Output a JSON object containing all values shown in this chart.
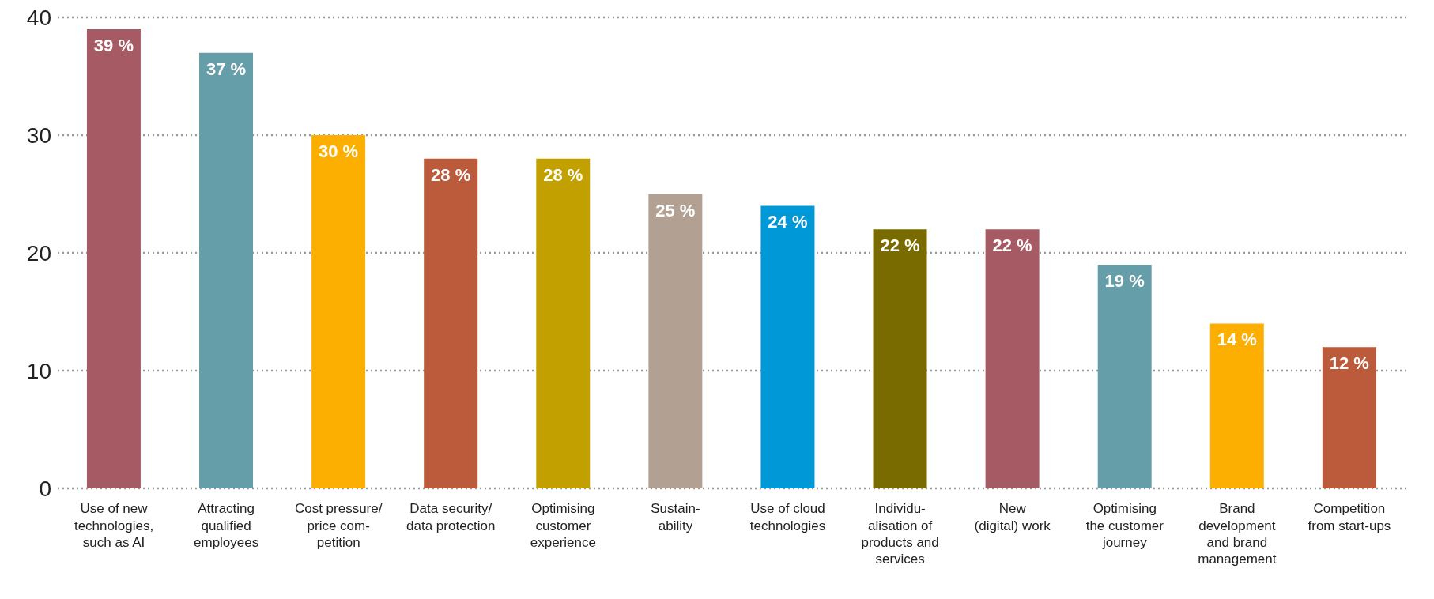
{
  "chart_data": {
    "type": "bar",
    "categories": [
      "Use of new\ntechnologies,\nsuch as AI",
      "Attracting\nqualified\nemployees",
      "Cost pressure/\nprice com-\npetition",
      "Data security/\ndata protection",
      "Optimising\ncustomer\nexperience",
      "Sustain-\nability",
      "Use of cloud\ntechnologies",
      "Individu-\nalisation of\nproducts and\nservices",
      "New\n(digital) work",
      "Optimising\nthe customer\njourney",
      "Brand\ndevelopment\nand brand\nmanagement",
      "Competition\nfrom start-ups"
    ],
    "values": [
      39,
      37,
      30,
      28,
      28,
      25,
      24,
      22,
      22,
      19,
      14,
      12
    ],
    "value_labels": [
      "39 %",
      "37 %",
      "30 %",
      "28 %",
      "28 %",
      "25 %",
      "24 %",
      "22 %",
      "22 %",
      "19 %",
      "14 %",
      "12 %"
    ],
    "colors": [
      "#a65a63",
      "#659ea8",
      "#fcaf00",
      "#bc5a3c",
      "#c2a000",
      "#b2a193",
      "#0098d6",
      "#7a6b00",
      "#a65a63",
      "#659ea8",
      "#fcaf00",
      "#bc5a3c"
    ],
    "ylim": [
      0,
      40
    ],
    "yticks": [
      0,
      10,
      20,
      30,
      40
    ],
    "grid": "y"
  }
}
